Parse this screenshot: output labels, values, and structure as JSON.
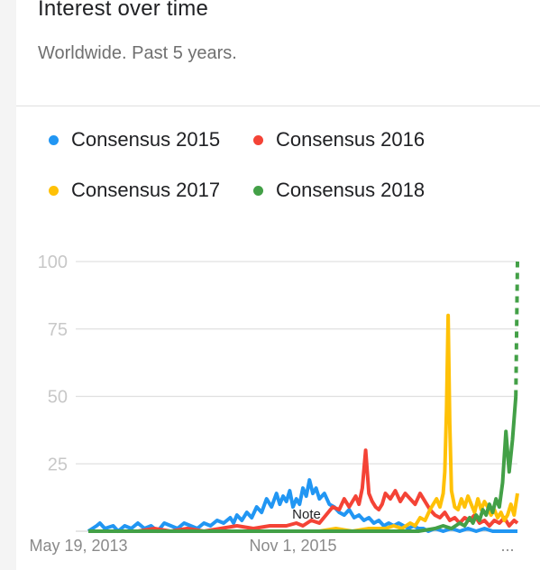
{
  "header": {
    "title": "Interest over time",
    "subtitle": "Worldwide. Past 5 years."
  },
  "note_label": "Note",
  "ellipsis": "...",
  "chart_data": {
    "type": "line",
    "title": "Interest over time",
    "subtitle": "Worldwide. Past 5 years.",
    "xlabel": "",
    "ylabel": "",
    "ylim": [
      0,
      100
    ],
    "yticks": [
      25,
      50,
      75,
      100
    ],
    "xticks": [
      "May 19, 2013",
      "Nov 1, 2015",
      "..."
    ],
    "grid": true,
    "legend_position": "top",
    "note_annotation": "Note",
    "x_weeks_range": [
      0,
      260
    ],
    "series": [
      {
        "name": "Consensus 2015",
        "color": "#2196f3",
        "points": [
          [
            0,
            0
          ],
          [
            5,
            2
          ],
          [
            7,
            3
          ],
          [
            10,
            1
          ],
          [
            15,
            2
          ],
          [
            18,
            0
          ],
          [
            22,
            2
          ],
          [
            26,
            1
          ],
          [
            30,
            3
          ],
          [
            34,
            1
          ],
          [
            38,
            2
          ],
          [
            42,
            0
          ],
          [
            46,
            3
          ],
          [
            50,
            2
          ],
          [
            54,
            1
          ],
          [
            58,
            3
          ],
          [
            62,
            2
          ],
          [
            66,
            1
          ],
          [
            70,
            3
          ],
          [
            74,
            2
          ],
          [
            78,
            4
          ],
          [
            82,
            3
          ],
          [
            86,
            5
          ],
          [
            88,
            3
          ],
          [
            90,
            6
          ],
          [
            93,
            4
          ],
          [
            96,
            7
          ],
          [
            99,
            5
          ],
          [
            102,
            9
          ],
          [
            105,
            7
          ],
          [
            108,
            12
          ],
          [
            111,
            9
          ],
          [
            114,
            14
          ],
          [
            116,
            10
          ],
          [
            118,
            13
          ],
          [
            120,
            11
          ],
          [
            122,
            15
          ],
          [
            124,
            9
          ],
          [
            126,
            12
          ],
          [
            128,
            10
          ],
          [
            130,
            16
          ],
          [
            132,
            13
          ],
          [
            134,
            19
          ],
          [
            136,
            14
          ],
          [
            138,
            16
          ],
          [
            140,
            12
          ],
          [
            143,
            14
          ],
          [
            146,
            10
          ],
          [
            149,
            9
          ],
          [
            152,
            7
          ],
          [
            155,
            6
          ],
          [
            158,
            8
          ],
          [
            161,
            5
          ],
          [
            164,
            6
          ],
          [
            167,
            4
          ],
          [
            170,
            5
          ],
          [
            173,
            3
          ],
          [
            176,
            4
          ],
          [
            179,
            2
          ],
          [
            182,
            3
          ],
          [
            185,
            2
          ],
          [
            188,
            3
          ],
          [
            191,
            2
          ],
          [
            194,
            1
          ],
          [
            197,
            2
          ],
          [
            200,
            1
          ],
          [
            203,
            1
          ],
          [
            206,
            0
          ],
          [
            210,
            1
          ],
          [
            215,
            0
          ],
          [
            220,
            1
          ],
          [
            225,
            0
          ],
          [
            230,
            1
          ],
          [
            235,
            0
          ],
          [
            240,
            1
          ],
          [
            245,
            0
          ],
          [
            250,
            0
          ],
          [
            255,
            0
          ],
          [
            260,
            0
          ]
        ]
      },
      {
        "name": "Consensus 2016",
        "color": "#f44336",
        "points": [
          [
            0,
            0
          ],
          [
            10,
            0
          ],
          [
            20,
            0
          ],
          [
            30,
            0
          ],
          [
            40,
            1
          ],
          [
            50,
            0
          ],
          [
            60,
            1
          ],
          [
            70,
            0
          ],
          [
            80,
            1
          ],
          [
            90,
            2
          ],
          [
            100,
            1
          ],
          [
            110,
            2
          ],
          [
            120,
            2
          ],
          [
            126,
            3
          ],
          [
            130,
            2
          ],
          [
            135,
            4
          ],
          [
            140,
            3
          ],
          [
            144,
            6
          ],
          [
            148,
            9
          ],
          [
            152,
            8
          ],
          [
            155,
            12
          ],
          [
            158,
            9
          ],
          [
            160,
            11
          ],
          [
            162,
            13
          ],
          [
            164,
            10
          ],
          [
            166,
            16
          ],
          [
            168,
            30
          ],
          [
            170,
            14
          ],
          [
            172,
            11
          ],
          [
            174,
            9
          ],
          [
            176,
            8
          ],
          [
            178,
            10
          ],
          [
            180,
            14
          ],
          [
            183,
            12
          ],
          [
            186,
            15
          ],
          [
            189,
            11
          ],
          [
            192,
            14
          ],
          [
            195,
            12
          ],
          [
            198,
            10
          ],
          [
            201,
            14
          ],
          [
            204,
            11
          ],
          [
            207,
            8
          ],
          [
            210,
            6
          ],
          [
            213,
            5
          ],
          [
            216,
            7
          ],
          [
            219,
            4
          ],
          [
            222,
            5
          ],
          [
            225,
            3
          ],
          [
            228,
            5
          ],
          [
            231,
            4
          ],
          [
            234,
            6
          ],
          [
            237,
            3
          ],
          [
            240,
            4
          ],
          [
            243,
            2
          ],
          [
            246,
            4
          ],
          [
            249,
            3
          ],
          [
            252,
            5
          ],
          [
            255,
            2
          ],
          [
            258,
            4
          ],
          [
            260,
            3
          ]
        ]
      },
      {
        "name": "Consensus 2017",
        "color": "#ffc107",
        "points": [
          [
            0,
            0
          ],
          [
            20,
            0
          ],
          [
            40,
            0
          ],
          [
            60,
            0
          ],
          [
            80,
            0
          ],
          [
            100,
            0
          ],
          [
            120,
            0
          ],
          [
            140,
            0
          ],
          [
            150,
            1
          ],
          [
            160,
            0
          ],
          [
            170,
            1
          ],
          [
            180,
            1
          ],
          [
            185,
            2
          ],
          [
            190,
            1
          ],
          [
            195,
            3
          ],
          [
            198,
            2
          ],
          [
            201,
            5
          ],
          [
            204,
            4
          ],
          [
            207,
            8
          ],
          [
            209,
            10
          ],
          [
            211,
            12
          ],
          [
            213,
            9
          ],
          [
            215,
            14
          ],
          [
            216,
            22
          ],
          [
            217,
            45
          ],
          [
            218,
            80
          ],
          [
            219,
            40
          ],
          [
            220,
            15
          ],
          [
            222,
            9
          ],
          [
            224,
            8
          ],
          [
            226,
            12
          ],
          [
            228,
            9
          ],
          [
            230,
            13
          ],
          [
            232,
            10
          ],
          [
            234,
            7
          ],
          [
            236,
            12
          ],
          [
            238,
            8
          ],
          [
            240,
            11
          ],
          [
            242,
            9
          ],
          [
            244,
            6
          ],
          [
            246,
            8
          ],
          [
            248,
            5
          ],
          [
            250,
            7
          ],
          [
            252,
            4
          ],
          [
            254,
            6
          ],
          [
            256,
            10
          ],
          [
            258,
            6
          ],
          [
            260,
            14
          ]
        ]
      },
      {
        "name": "Consensus 2018",
        "color": "#43a047",
        "points": [
          [
            0,
            0
          ],
          [
            40,
            0
          ],
          [
            80,
            0
          ],
          [
            120,
            0
          ],
          [
            160,
            0
          ],
          [
            180,
            0
          ],
          [
            200,
            0
          ],
          [
            210,
            1
          ],
          [
            215,
            2
          ],
          [
            220,
            1
          ],
          [
            225,
            3
          ],
          [
            228,
            2
          ],
          [
            231,
            5
          ],
          [
            233,
            3
          ],
          [
            235,
            6
          ],
          [
            237,
            4
          ],
          [
            239,
            8
          ],
          [
            241,
            6
          ],
          [
            243,
            10
          ],
          [
            245,
            7
          ],
          [
            247,
            12
          ],
          [
            249,
            9
          ],
          [
            251,
            18
          ],
          [
            253,
            37
          ],
          [
            255,
            22
          ],
          [
            257,
            34
          ],
          [
            259,
            50
          ]
        ],
        "partial_points": [
          [
            259,
            50
          ],
          [
            260,
            100
          ]
        ]
      }
    ]
  }
}
